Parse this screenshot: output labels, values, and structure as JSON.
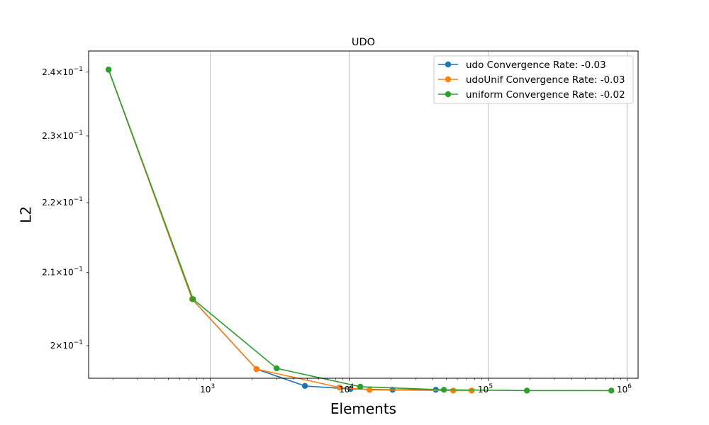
{
  "chart_data": {
    "type": "line",
    "title": "UDO",
    "xlabel": "Elements",
    "ylabel": "L2",
    "xscale": "log",
    "yscale": "log",
    "xlim": [
      133,
      1200000
    ],
    "ylim": [
      0.1957,
      0.2434
    ],
    "grid": "vertical major only",
    "legend_position": "top-right",
    "x_ticks": [
      {
        "value": 1000,
        "base": "10",
        "exp": "3"
      },
      {
        "value": 10000,
        "base": "10",
        "exp": "4"
      },
      {
        "value": 100000,
        "base": "10",
        "exp": "5"
      },
      {
        "value": 1000000,
        "base": "10",
        "exp": "6"
      }
    ],
    "y_ticks": [
      {
        "value": 0.2,
        "mant": "2",
        "base": "10",
        "exp": "−1"
      },
      {
        "value": 0.21,
        "mant": "2.1",
        "base": "10",
        "exp": "−1"
      },
      {
        "value": 0.22,
        "mant": "2.2",
        "base": "10",
        "exp": "−1"
      },
      {
        "value": 0.23,
        "mant": "2.3",
        "base": "10",
        "exp": "−1"
      },
      {
        "value": 0.24,
        "mant": "2.4",
        "base": "10",
        "exp": "−1"
      }
    ],
    "series": [
      {
        "name": "udo Convergence Rate: -0.03",
        "color": "#1f77b4",
        "x": [
          185,
          740,
          2150,
          4800,
          10200,
          20500,
          42000
        ],
        "y": [
          0.2404,
          0.2063,
          0.1969,
          0.1947,
          0.1943,
          0.1942,
          0.1942
        ]
      },
      {
        "name": "udoUnif Convergence Rate: -0.03",
        "color": "#ff7f0e",
        "x": [
          185,
          740,
          2150,
          8500,
          14000,
          56000,
          76000
        ],
        "y": [
          0.2404,
          0.2063,
          0.1969,
          0.1945,
          0.1942,
          0.1941,
          0.1941
        ]
      },
      {
        "name": "uniform Convergence Rate: -0.02",
        "color": "#2ca02c",
        "x": [
          185,
          750,
          3000,
          12000,
          48000,
          190000,
          770000
        ],
        "y": [
          0.2404,
          0.2063,
          0.197,
          0.1946,
          0.1942,
          0.1941,
          0.1941
        ]
      }
    ]
  }
}
